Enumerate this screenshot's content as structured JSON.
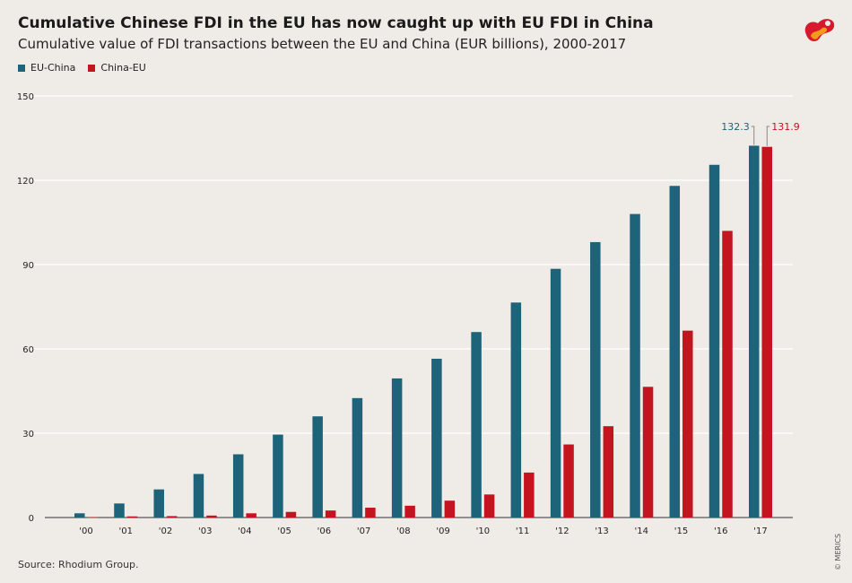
{
  "title": "Cumulative Chinese FDI in the EU has now caught up with EU FDI in China",
  "subtitle": "Cumulative value of FDI transactions between the EU and China (EUR billions), 2000-2017",
  "source": "Source: Rhodium Group.",
  "credit": "© MERICS",
  "colors": {
    "background": "#efebe7",
    "eu_china": "#1d6379",
    "china_eu": "#c4141f",
    "grid": "#ffffff",
    "axis": "#333333"
  },
  "legend": [
    {
      "label": "EU-China",
      "color": "#1d6379"
    },
    {
      "label": "China-EU",
      "color": "#c4141f"
    }
  ],
  "chart_data": {
    "type": "bar",
    "title": "Cumulative Chinese FDI in the EU has now caught up with EU FDI in China",
    "subtitle": "Cumulative value of FDI transactions between the EU and China (EUR billions), 2000-2017",
    "xlabel": "",
    "ylabel": "",
    "ylim": [
      0,
      150
    ],
    "yticks": [
      0,
      30,
      60,
      90,
      120,
      150
    ],
    "grid": true,
    "legend_position": "top-left",
    "categories": [
      "'00",
      "'01",
      "'02",
      "'03",
      "'04",
      "'05",
      "'06",
      "'07",
      "'08",
      "'09",
      "'10",
      "'11",
      "'12",
      "'13",
      "'14",
      "'15",
      "'16",
      "'17"
    ],
    "series": [
      {
        "name": "EU-China",
        "color": "#1d6379",
        "values": [
          1.5,
          5,
          10,
          15.5,
          22.5,
          29.5,
          36,
          42.5,
          49.5,
          56.5,
          66,
          76.5,
          88.5,
          98,
          108,
          118,
          125.5,
          132.3
        ]
      },
      {
        "name": "China-EU",
        "color": "#c4141f",
        "values": [
          0.1,
          0.4,
          0.5,
          0.7,
          1.5,
          2,
          2.5,
          3.5,
          4.2,
          6,
          8.2,
          16,
          26,
          32.5,
          46.5,
          66.5,
          102,
          131.9
        ]
      }
    ],
    "annotations": [
      {
        "series": "EU-China",
        "category": "'17",
        "label": "132.3"
      },
      {
        "series": "China-EU",
        "category": "'17",
        "label": "131.9"
      }
    ]
  }
}
